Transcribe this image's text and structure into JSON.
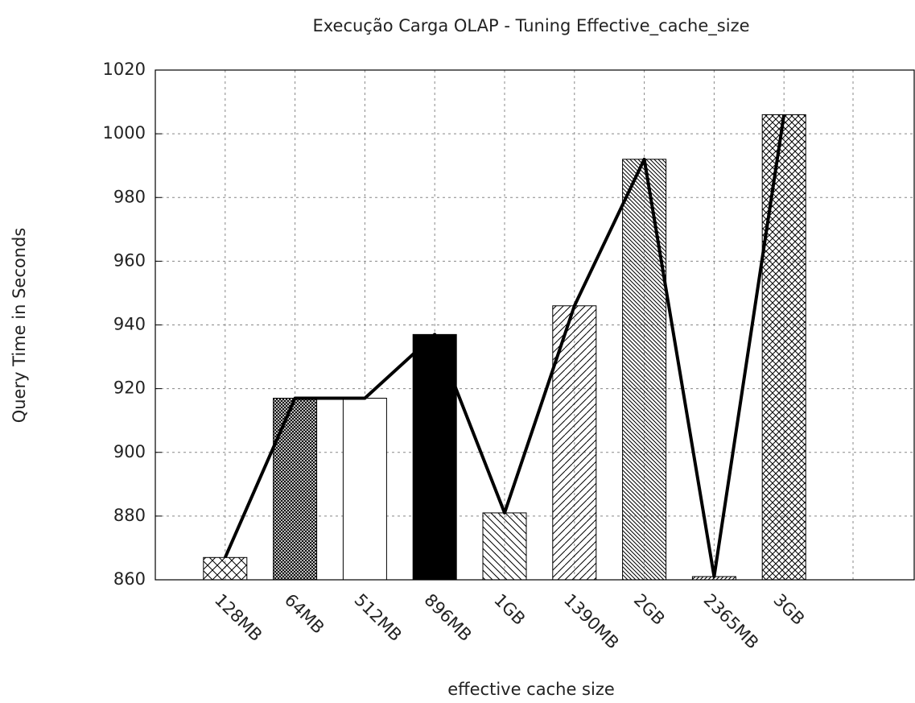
{
  "chart_data": {
    "type": "bar",
    "title": "Execução Carga OLAP - Tuning Effective_cache_size",
    "x_label": "effective  cache  size",
    "y_label": "Query Time in Seconds",
    "categories": [
      "128MB",
      "64MB",
      "512MB",
      "896MB",
      "1GB",
      "1390MB",
      "2GB",
      "2365MB",
      "3GB"
    ],
    "values": [
      867,
      917,
      917,
      937,
      881,
      946,
      992,
      861,
      1006
    ],
    "color": "#000000",
    "ylim": [
      860,
      1020
    ],
    "yticks": [
      860,
      880,
      900,
      920,
      940,
      960,
      980,
      1000,
      1020
    ],
    "grid": true
  }
}
